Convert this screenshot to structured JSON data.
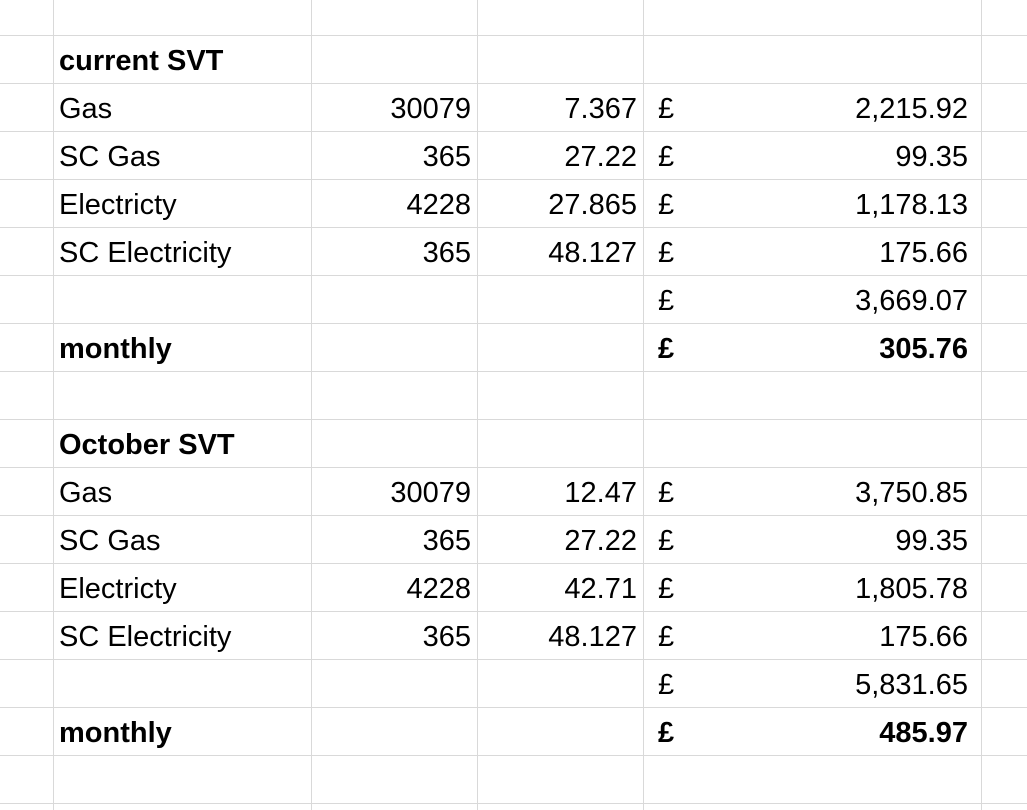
{
  "colors": {
    "gridline": "#d9d9d9",
    "background": "#ffffff",
    "text": "#000000"
  },
  "blocks": [
    {
      "title": "current SVT",
      "rows": [
        {
          "label": "Gas",
          "qty": "30079",
          "rate": "7.367",
          "currency": "£",
          "amount": "2,215.92"
        },
        {
          "label": "SC Gas",
          "qty": "365",
          "rate": "27.22",
          "currency": "£",
          "amount": "99.35"
        },
        {
          "label": "Electricty",
          "qty": "4228",
          "rate": "27.865",
          "currency": "£",
          "amount": "1,178.13"
        },
        {
          "label": "SC Electricity",
          "qty": "365",
          "rate": "48.127",
          "currency": "£",
          "amount": "175.66"
        }
      ],
      "total": {
        "currency": "£",
        "amount": "3,669.07"
      },
      "monthly": {
        "label": "monthly",
        "currency": "£",
        "amount": "305.76"
      }
    },
    {
      "title": "October SVT",
      "rows": [
        {
          "label": "Gas",
          "qty": "30079",
          "rate": "12.47",
          "currency": "£",
          "amount": "3,750.85"
        },
        {
          "label": "SC Gas",
          "qty": "365",
          "rate": "27.22",
          "currency": "£",
          "amount": "99.35"
        },
        {
          "label": "Electricty",
          "qty": "4228",
          "rate": "42.71",
          "currency": "£",
          "amount": "1,805.78"
        },
        {
          "label": "SC Electricity",
          "qty": "365",
          "rate": "48.127",
          "currency": "£",
          "amount": "175.66"
        }
      ],
      "total": {
        "currency": "£",
        "amount": "5,831.65"
      },
      "monthly": {
        "label": "monthly",
        "currency": "£",
        "amount": "485.97"
      }
    }
  ]
}
